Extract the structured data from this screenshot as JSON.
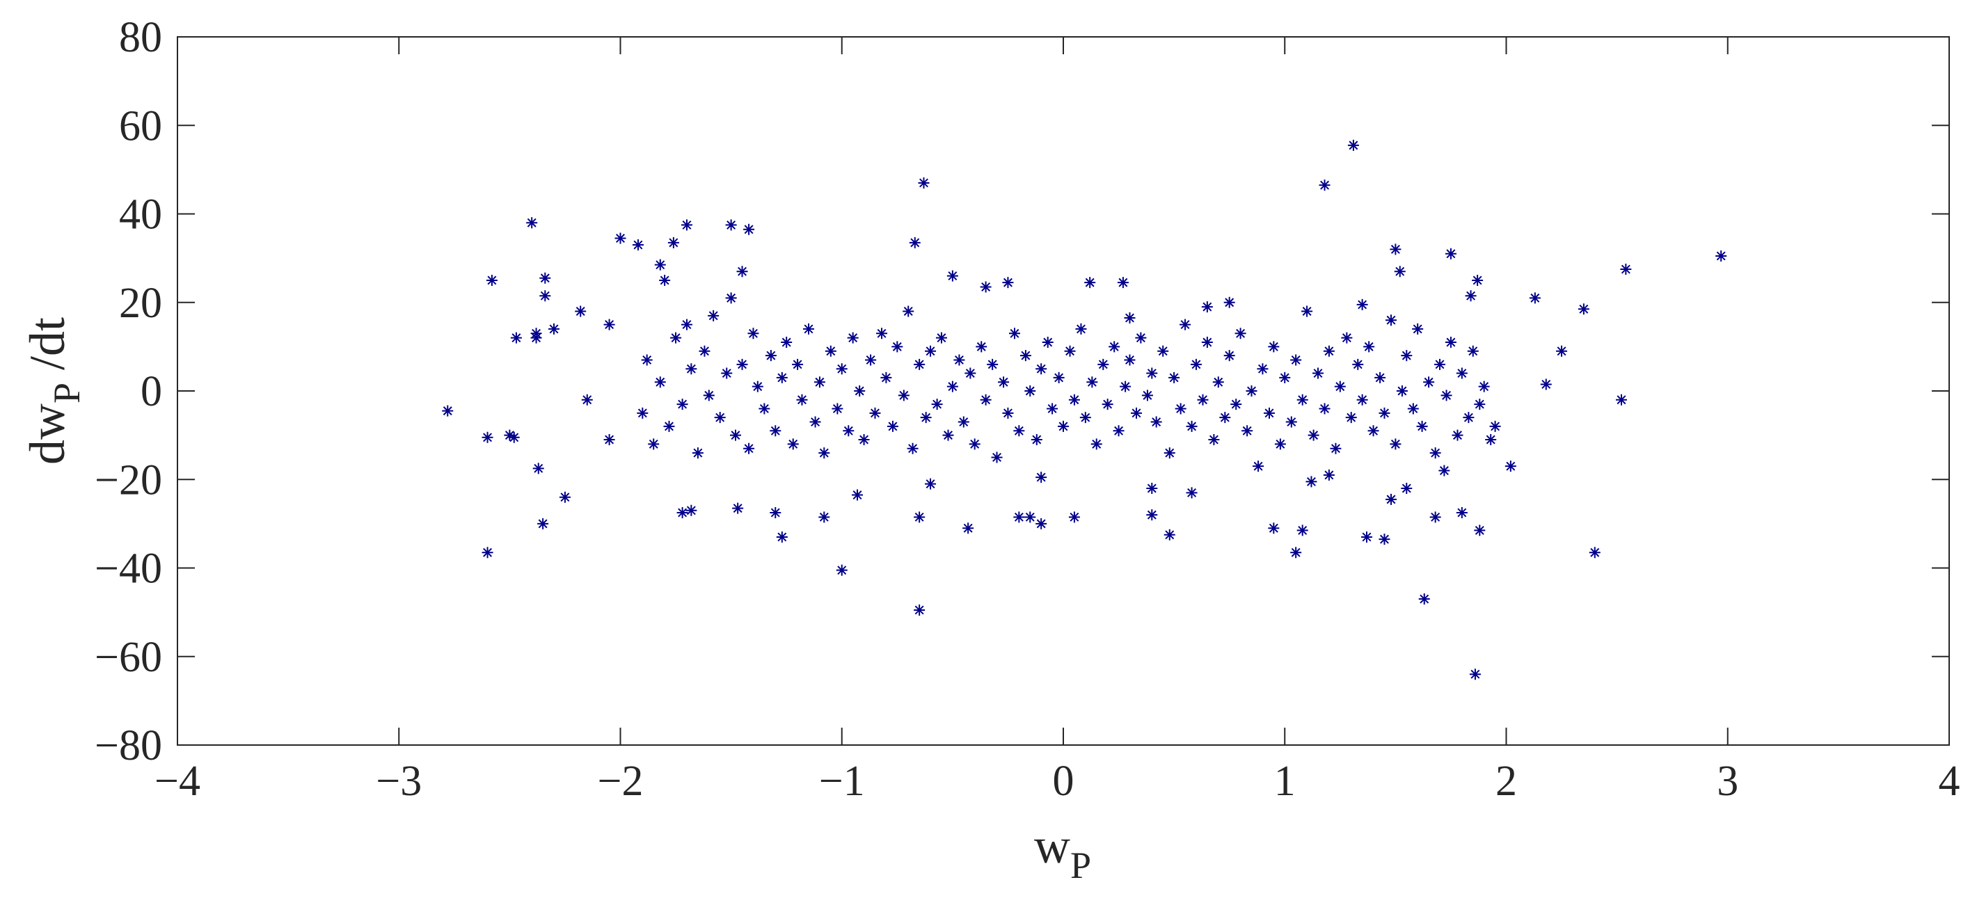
{
  "chart_data": {
    "type": "scatter",
    "xlabel": {
      "text": "w",
      "subscript": "P"
    },
    "ylabel": {
      "text": "dw",
      "subscript": "P",
      "suffix": " /dt"
    },
    "color": "#00008b",
    "xlim": [
      -4,
      4
    ],
    "ylim": [
      -80,
      80
    ],
    "xticks": [
      {
        "value": -4,
        "label": "−4"
      },
      {
        "value": -3,
        "label": "−3"
      },
      {
        "value": -2,
        "label": "−2"
      },
      {
        "value": -1,
        "label": "−1"
      },
      0,
      1,
      2,
      3,
      4
    ],
    "yticks": [
      {
        "value": -80,
        "label": "−80"
      },
      {
        "value": -60,
        "label": "−60"
      },
      {
        "value": -40,
        "label": "−40"
      },
      {
        "value": -20,
        "label": "−20"
      },
      0,
      20,
      40,
      60,
      80
    ],
    "x": [
      -2.78,
      -2.6,
      -2.6,
      -2.58,
      -2.5,
      -2.48,
      -2.47,
      -2.4,
      -2.38,
      -2.38,
      -2.37,
      -2.35,
      -2.34,
      -2.34,
      -2.3,
      -2.25,
      -2.18,
      -2.15,
      -2.05,
      -2.05,
      -2.0,
      -1.92,
      -1.82,
      -1.8,
      -1.76,
      -1.7,
      -1.72,
      -1.68,
      -1.5,
      -1.45,
      -1.42,
      -1.47,
      -1.3,
      -1.27,
      -1.08,
      -1.0,
      -0.93,
      -0.67,
      -0.63,
      -0.65,
      -0.65,
      -0.6,
      -0.5,
      -0.43,
      -0.35,
      -0.25,
      -0.2,
      -0.15,
      -0.1,
      -0.1,
      0.05,
      0.12,
      0.27,
      0.3,
      0.4,
      0.4,
      0.48,
      0.58,
      0.65,
      0.75,
      0.95,
      1.05,
      1.08,
      1.12,
      1.18,
      1.2,
      1.31,
      1.37,
      1.35,
      1.45,
      1.48,
      1.5,
      1.52,
      1.55,
      1.63,
      1.68,
      1.72,
      1.75,
      1.8,
      1.84,
      1.86,
      1.88,
      1.87,
      2.02,
      2.13,
      2.18,
      2.25,
      2.35,
      2.4,
      2.52,
      2.54,
      2.97,
      -1.9,
      -1.88,
      -1.85,
      -1.82,
      -1.78,
      -1.75,
      -1.72,
      -1.7,
      -1.68,
      -1.65,
      -1.62,
      -1.6,
      -1.58,
      -1.55,
      -1.52,
      -1.5,
      -1.48,
      -1.45,
      -1.42,
      -1.4,
      -1.38,
      -1.35,
      -1.32,
      -1.3,
      -1.27,
      -1.25,
      -1.22,
      -1.2,
      -1.18,
      -1.15,
      -1.12,
      -1.1,
      -1.08,
      -1.05,
      -1.02,
      -1.0,
      -0.97,
      -0.95,
      -0.92,
      -0.9,
      -0.87,
      -0.85,
      -0.82,
      -0.8,
      -0.77,
      -0.75,
      -0.72,
      -0.7,
      -0.68,
      -0.65,
      -0.62,
      -0.6,
      -0.57,
      -0.55,
      -0.52,
      -0.5,
      -0.47,
      -0.45,
      -0.42,
      -0.4,
      -0.37,
      -0.35,
      -0.32,
      -0.3,
      -0.27,
      -0.25,
      -0.22,
      -0.2,
      -0.17,
      -0.15,
      -0.12,
      -0.1,
      -0.07,
      -0.05,
      -0.02,
      0.0,
      0.03,
      0.05,
      0.08,
      0.1,
      0.13,
      0.15,
      0.18,
      0.2,
      0.23,
      0.25,
      0.28,
      0.3,
      0.33,
      0.35,
      0.38,
      0.4,
      0.42,
      0.45,
      0.48,
      0.5,
      0.53,
      0.55,
      0.58,
      0.6,
      0.63,
      0.65,
      0.68,
      0.7,
      0.73,
      0.75,
      0.78,
      0.8,
      0.83,
      0.85,
      0.88,
      0.9,
      0.93,
      0.95,
      0.98,
      1.0,
      1.03,
      1.05,
      1.08,
      1.1,
      1.13,
      1.15,
      1.18,
      1.2,
      1.23,
      1.25,
      1.28,
      1.3,
      1.33,
      1.35,
      1.38,
      1.4,
      1.43,
      1.45,
      1.48,
      1.5,
      1.53,
      1.55,
      1.58,
      1.6,
      1.62,
      1.65,
      1.68,
      1.7,
      1.73,
      1.75,
      1.78,
      1.8,
      1.83,
      1.85,
      1.88,
      1.9,
      1.93,
      1.95
    ],
    "values": [
      -4.5,
      -36.5,
      -10.5,
      25,
      -10,
      -10.5,
      12,
      38,
      13,
      12,
      -17.5,
      -30,
      25.5,
      21.5,
      14,
      -24,
      18,
      -2,
      15,
      -11,
      34.5,
      33,
      28.5,
      25,
      33.5,
      37.5,
      -27.5,
      -27,
      37.5,
      27,
      36.5,
      -26.5,
      -27.5,
      -33,
      -28.5,
      -40.5,
      -23.5,
      33.5,
      47,
      -49.5,
      -28.5,
      -21,
      26,
      -31,
      23.5,
      24.5,
      -28.5,
      -28.5,
      -30,
      -19.5,
      -28.5,
      24.5,
      24.5,
      16.5,
      -28,
      -22,
      -32.5,
      -23,
      19,
      20,
      -31,
      -36.5,
      -31.5,
      -20.5,
      46.5,
      -19,
      55.5,
      -33,
      19.5,
      -33.5,
      -24.5,
      32,
      27,
      -22,
      -47,
      -28.5,
      -18,
      31,
      -27.5,
      21.5,
      -64,
      -31.5,
      25,
      -17,
      21,
      1.5,
      9,
      18.5,
      -36.5,
      -2,
      27.5,
      30.5,
      -5,
      7,
      -12,
      2,
      -8,
      12,
      -3,
      15,
      5,
      -14,
      9,
      -1,
      17,
      -6,
      4,
      21,
      -10,
      6,
      -13,
      13,
      1,
      -4,
      8,
      -9,
      3,
      11,
      -12,
      6,
      -2,
      14,
      -7,
      2,
      -14,
      9,
      -4,
      5,
      -9,
      12,
      0,
      -11,
      7,
      -5,
      13,
      3,
      -8,
      10,
      -1,
      18,
      -13,
      6,
      -6,
      9,
      -3,
      12,
      -10,
      1,
      7,
      -7,
      4,
      -12,
      10,
      -2,
      6,
      -15,
      2,
      -5,
      13,
      -9,
      8,
      0,
      -11,
      5,
      11,
      -4,
      3,
      -8,
      9,
      -2,
      14,
      -6,
      2,
      -12,
      6,
      -3,
      10,
      -9,
      1,
      7,
      -5,
      12,
      -1,
      4,
      -7,
      9,
      -14,
      3,
      -4,
      15,
      -8,
      6,
      -2,
      11,
      -11,
      2,
      -6,
      8,
      -3,
      13,
      -9,
      0,
      -17,
      5,
      -5,
      10,
      -12,
      3,
      -7,
      7,
      -2,
      18,
      -10,
      4,
      -4,
      9,
      -13,
      1,
      12,
      -6,
      6,
      -2,
      10,
      -9,
      3,
      -5,
      16,
      -12,
      0,
      8,
      -4,
      14,
      -8,
      2,
      -14,
      6,
      -1,
      11,
      -10,
      4,
      -6,
      9,
      -3,
      1,
      -11,
      -8
    ]
  }
}
